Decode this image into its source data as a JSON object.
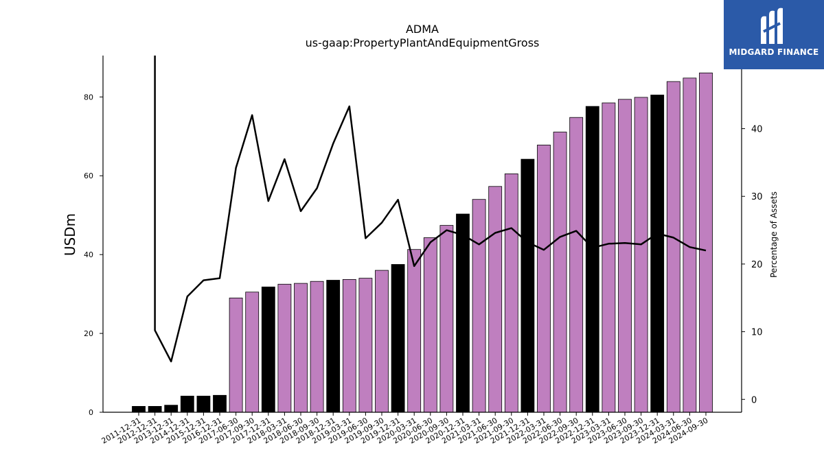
{
  "chart_data": {
    "type": "bar",
    "title": "ADMA",
    "subtitle": "us-gaap:PropertyPlantAndEquipmentGross",
    "ylabel": "USDm",
    "y2label": "Percentage of Assets",
    "ylim": [
      0,
      90.5
    ],
    "y2lim": [
      -1.9,
      50.8
    ],
    "yticks": [
      0,
      20,
      40,
      60,
      80
    ],
    "y2ticks": [
      0,
      10,
      20,
      30,
      40
    ],
    "categories": [
      "2011-12-31",
      "2012-12-31",
      "2013-12-31",
      "2014-12-31",
      "2015-12-31",
      "2016-12-31",
      "2017-06-30",
      "2017-09-30",
      "2017-12-31",
      "2018-03-31",
      "2018-06-30",
      "2018-09-30",
      "2018-12-31",
      "2019-03-31",
      "2019-06-30",
      "2019-09-30",
      "2019-12-31",
      "2020-03-31",
      "2020-06-30",
      "2020-09-30",
      "2020-12-31",
      "2021-03-31",
      "2021-06-30",
      "2021-09-30",
      "2021-12-31",
      "2022-03-31",
      "2022-06-30",
      "2022-09-30",
      "2022-12-31",
      "2023-03-31",
      "2023-06-30",
      "2023-09-30",
      "2023-12-31",
      "2024-03-31",
      "2024-06-30",
      "2024-09-30"
    ],
    "series": [
      {
        "name": "",
        "kind": "bar",
        "values": [
          1.5,
          1.5,
          1.8,
          4.1,
          4.1,
          4.3,
          29.0,
          30.5,
          31.8,
          32.5,
          32.7,
          33.2,
          33.5,
          33.7,
          34.0,
          36.0,
          37.5,
          41.3,
          44.3,
          47.4,
          50.3,
          54.0,
          57.3,
          60.5,
          64.2,
          67.8,
          71.1,
          74.8,
          77.6,
          78.5,
          79.4,
          79.9,
          80.5,
          83.9,
          84.8,
          86.1
        ]
      },
      {
        "name": "",
        "kind": "line",
        "axis": "right",
        "values": [
          null,
          10.2,
          5.6,
          15.2,
          17.6,
          17.9,
          34.2,
          42.0,
          29.3,
          35.5,
          27.8,
          31.2,
          37.8,
          43.3,
          23.8,
          26.1,
          29.5,
          19.7,
          23.2,
          25.0,
          24.3,
          22.9,
          24.6,
          25.3,
          23.2,
          22.1,
          24.0,
          24.9,
          22.4,
          23.0,
          23.1,
          22.9,
          24.5,
          23.9,
          22.5,
          22.0
        ]
      }
    ],
    "bar_colors": [
      "#000000",
      "#000000",
      "#000000",
      "#000000",
      "#000000",
      "#000000",
      "#bf7fbf",
      "#bf7fbf",
      "#000000",
      "#bf7fbf",
      "#bf7fbf",
      "#bf7fbf",
      "#000000",
      "#bf7fbf",
      "#bf7fbf",
      "#bf7fbf",
      "#000000",
      "#bf7fbf",
      "#bf7fbf",
      "#bf7fbf",
      "#000000",
      "#bf7fbf",
      "#bf7fbf",
      "#bf7fbf",
      "#000000",
      "#bf7fbf",
      "#bf7fbf",
      "#bf7fbf",
      "#000000",
      "#bf7fbf",
      "#bf7fbf",
      "#bf7fbf",
      "#000000",
      "#bf7fbf",
      "#bf7fbf",
      "#bf7fbf"
    ],
    "line_color": "#000000",
    "grid": false,
    "legend": "none"
  },
  "logo": {
    "text": "MIDGARD FINANCE",
    "bg_color": "#2b5aa8",
    "icon": "midgard-logo-icon"
  }
}
